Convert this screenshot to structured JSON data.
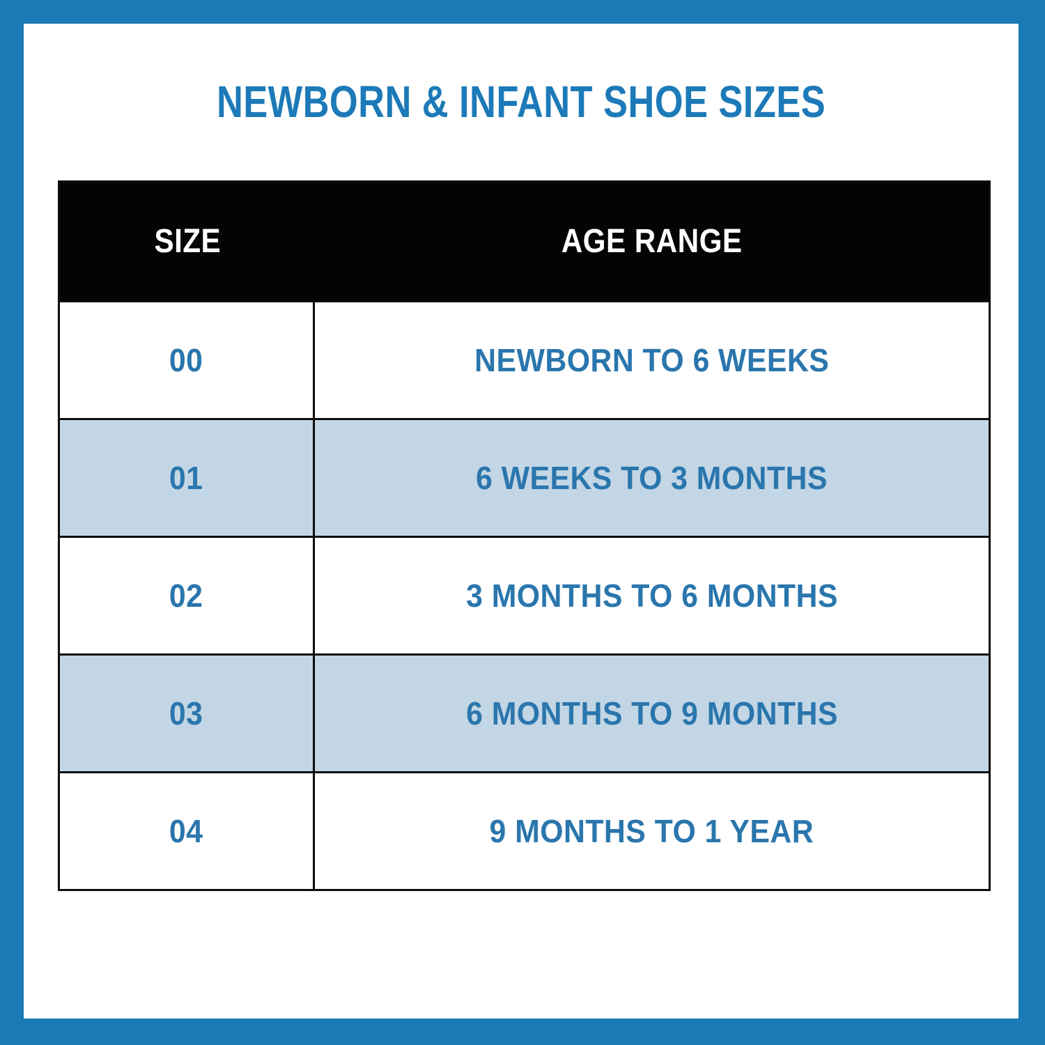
{
  "title": "NEWBORN & INFANT SHOE SIZES",
  "colors": {
    "frame_blue": "#1b79b4",
    "title_blue": "#1d7ab8",
    "cell_text_blue": "#2a76ad",
    "header_bg": "#040404",
    "header_text": "#ffffff",
    "row_stripe_blue": "#c3d6e5",
    "table_border": "#0e0e0e",
    "page_bg": "#ffffff"
  },
  "table": {
    "headers": {
      "size": "SIZE",
      "age_range": "AGE RANGE"
    },
    "rows": [
      {
        "size": "00",
        "age_range": "NEWBORN TO 6 WEEKS"
      },
      {
        "size": "01",
        "age_range": "6 WEEKS TO 3 MONTHS"
      },
      {
        "size": "02",
        "age_range": "3 MONTHS TO 6 MONTHS"
      },
      {
        "size": "03",
        "age_range": "6 MONTHS TO 9 MONTHS"
      },
      {
        "size": "04",
        "age_range": "9 MONTHS TO 1 YEAR"
      }
    ]
  },
  "chart_data": {
    "type": "table",
    "title": "NEWBORN & INFANT SHOE SIZES",
    "columns": [
      "SIZE",
      "AGE RANGE"
    ],
    "rows": [
      [
        "00",
        "NEWBORN TO 6 WEEKS"
      ],
      [
        "01",
        "6 WEEKS TO 3 MONTHS"
      ],
      [
        "02",
        "3 MONTHS TO 6 MONTHS"
      ],
      [
        "03",
        "6 MONTHS TO 9 MONTHS"
      ],
      [
        "04",
        "9 MONTHS TO 1 YEAR"
      ]
    ]
  }
}
